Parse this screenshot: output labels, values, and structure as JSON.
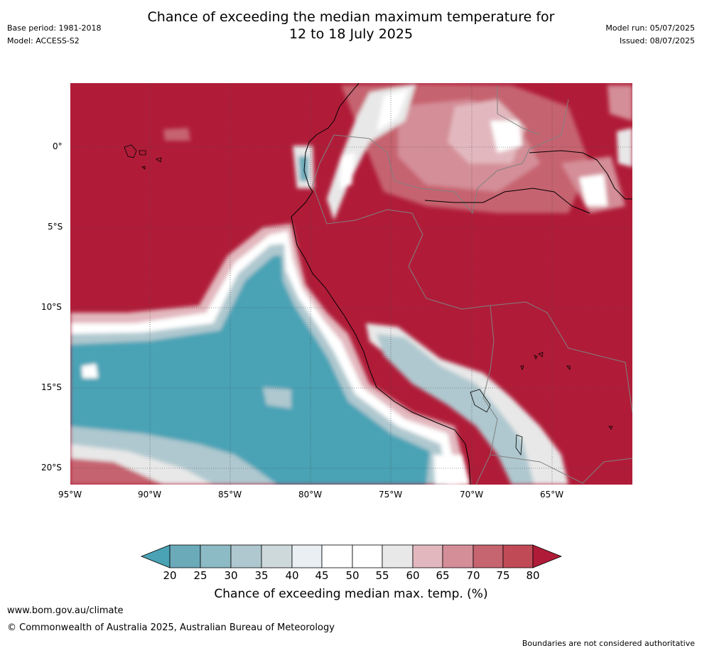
{
  "header": {
    "title_line1": "Chance of exceeding the median maximum temperature for",
    "title_line2": "12 to 18 July 2025",
    "base_period": "Base period: 1981-2018",
    "model": "Model: ACCESS-S2",
    "model_run": "Model run: 05/07/2025",
    "issued": "Issued: 08/07/2025"
  },
  "map": {
    "lon_range": [
      -95,
      -60
    ],
    "lat_range": [
      -21,
      4
    ],
    "lon_ticks": [
      "95°W",
      "90°W",
      "85°W",
      "80°W",
      "75°W",
      "70°W",
      "65°W"
    ],
    "lat_ticks": [
      "0°",
      "5°S",
      "10°S",
      "15°S",
      "20°S"
    ],
    "grid": true
  },
  "colorbar": {
    "title": "Chance of exceeding median max. temp. (%)",
    "labels": [
      "20",
      "25",
      "30",
      "35",
      "40",
      "45",
      "50",
      "55",
      "60",
      "65",
      "70",
      "75",
      "80"
    ],
    "colors": {
      "under": "#4aa3b5",
      "b20_25": "#6aaab9",
      "b25_30": "#8cbac5",
      "b30_35": "#afc8cf",
      "b35_40": "#ced9dc",
      "b40_45": "#e9eff2",
      "b45_50": "#ffffff",
      "b50_55": "#ffffff",
      "b55_60": "#e8e8e8",
      "b60_65": "#e2b8be",
      "b65_70": "#d48e98",
      "b70_75": "#c6646f",
      "b75_80": "#c04b57",
      "over": "#b01c38"
    }
  },
  "footer": {
    "url": "www.bom.gov.au/climate",
    "copyright": "© Commonwealth of Australia 2025, Australian Bureau of Meteorology",
    "note": "Boundaries are not considered authoritative"
  }
}
